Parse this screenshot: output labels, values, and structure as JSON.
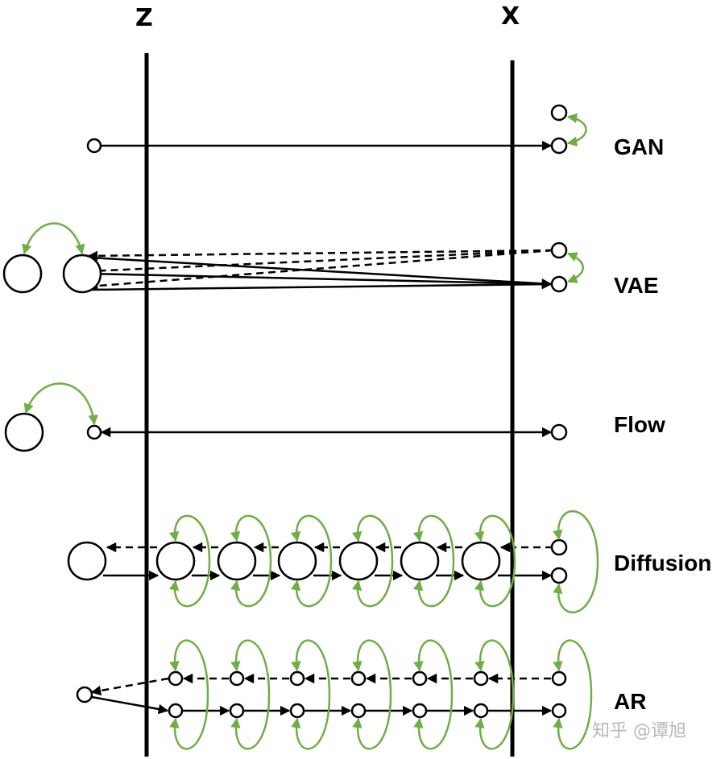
{
  "axes": {
    "left": "Z",
    "right": "X"
  },
  "rows": [
    {
      "id": "gan",
      "label": "GAN"
    },
    {
      "id": "vae",
      "label": "VAE"
    },
    {
      "id": "flow",
      "label": "Flow"
    },
    {
      "id": "diffusion",
      "label": "Diffusion"
    },
    {
      "id": "ar",
      "label": "AR"
    }
  ],
  "watermark": "知乎 @谭旭",
  "colors": {
    "line": "#000000",
    "dependency": "#70ad47"
  }
}
